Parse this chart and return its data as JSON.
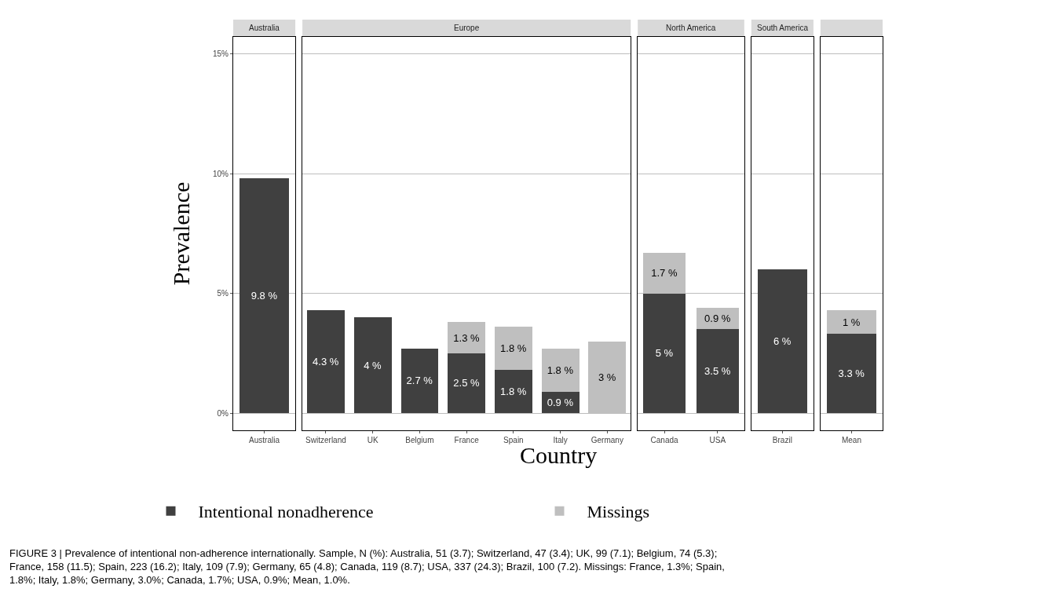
{
  "chart_data": [
    {
      "type": "bar",
      "title": "Australia",
      "stacked": true,
      "categories": [
        "Australia"
      ],
      "ylabel": "Prevalence",
      "legend": "bottom",
      "grid": "y",
      "ylim": [
        -0.72,
        15.72
      ],
      "yticks": [
        {
          "value": 0,
          "label": "0%"
        },
        {
          "value": 5,
          "label": "5%"
        },
        {
          "value": 10,
          "label": "10%"
        },
        {
          "value": 15,
          "label": "15%"
        }
      ],
      "series": [
        {
          "name": "Intentional nonadherence",
          "color": "#404040",
          "values": [
            9.8
          ],
          "value_labels": [
            "9.8 %"
          ]
        },
        {
          "name": "Missings",
          "color": "#bfbfbf",
          "values": [
            0
          ],
          "value_labels": [
            null
          ]
        }
      ],
      "annotations": [
        "FIGURE 3 | Prevalence of intentional non-adherence internationally. Sample, N (%): Australia, 51 (3.7); Switzerland, 47 (3.4); UK, 99 (7.1); Belgium, 74 (5.3); France, 158 (11.5); Spain, 223 (16.2); Italy, 109 (7.9); Germany, 65 (4.8); Canada, 119 (8.7); USA, 337 (24.3); Brazil, 100 (7.2). Missings: France, 1.3%; Spain, 1.8%; Italy, 1.8%; Germany, 3.0%; Canada, 1.7%; USA, 0.9%; Mean, 1.0%."
      ]
    },
    {
      "type": "bar",
      "title": "Europe",
      "stacked": true,
      "categories": [
        "Switzerland",
        "UK",
        "Belgium",
        "France",
        "Spain",
        "Italy",
        "Germany"
      ],
      "xlabel": "Country",
      "grid": "y",
      "tick_labels": "x",
      "ylim": [
        -0.72,
        15.72
      ],
      "yticks": [
        {
          "value": 0,
          "label": null
        },
        {
          "value": 5,
          "label": null
        },
        {
          "value": 10,
          "label": null
        },
        {
          "value": 15,
          "label": null
        }
      ],
      "series": [
        {
          "color": "#404040",
          "values": [
            4.3,
            4,
            2.7,
            2.5,
            1.8,
            0.9,
            0
          ],
          "value_labels": [
            "4.3 %",
            "4 %",
            "2.7 %",
            "2.5 %",
            "1.8 %",
            "0.9 %",
            null
          ]
        },
        {
          "color": "#bfbfbf",
          "values": [
            0,
            0,
            0,
            1.3,
            1.8,
            1.8,
            3
          ],
          "value_labels": [
            null,
            null,
            null,
            "1.3 %",
            "1.8 %",
            "1.8 %",
            "3 %"
          ]
        }
      ]
    },
    {
      "type": "bar",
      "title": "North America",
      "stacked": true,
      "categories": [
        "Canada",
        "USA"
      ],
      "grid": "y",
      "tick_labels": "x",
      "ylim": [
        -0.72,
        15.72
      ],
      "yticks": [
        {
          "value": 0,
          "label": null
        },
        {
          "value": 5,
          "label": null
        },
        {
          "value": 10,
          "label": null
        },
        {
          "value": 15,
          "label": null
        }
      ],
      "series": [
        {
          "color": "#404040",
          "values": [
            5,
            3.5
          ],
          "value_labels": [
            "5 %",
            "3.5 %"
          ]
        },
        {
          "color": "#bfbfbf",
          "values": [
            1.7,
            0.9
          ],
          "value_labels": [
            "1.7 %",
            "0.9 %"
          ]
        }
      ]
    },
    {
      "type": "bar",
      "title": "South America",
      "stacked": true,
      "categories": [
        "Brazil"
      ],
      "grid": "y",
      "tick_labels": "x",
      "ylim": [
        -0.72,
        15.72
      ],
      "yticks": [
        {
          "value": 0,
          "label": null
        },
        {
          "value": 5,
          "label": null
        },
        {
          "value": 10,
          "label": null
        },
        {
          "value": 15,
          "label": null
        }
      ],
      "series": [
        {
          "color": "#404040",
          "values": [
            6
          ],
          "value_labels": [
            "6 %"
          ]
        },
        {
          "color": "#bfbfbf",
          "values": [
            0
          ],
          "value_labels": [
            null
          ]
        }
      ]
    },
    {
      "type": "bar",
      "stacked": true,
      "categories": [
        "Mean"
      ],
      "grid": "y",
      "tick_labels": "x",
      "ylim": [
        -0.72,
        15.72
      ],
      "yticks": [
        {
          "value": 0,
          "label": null
        },
        {
          "value": 5,
          "label": null
        },
        {
          "value": 10,
          "label": null
        },
        {
          "value": 15,
          "label": null
        }
      ],
      "series": [
        {
          "color": "#404040",
          "values": [
            3.3
          ],
          "value_labels": [
            "3.3 %"
          ]
        },
        {
          "color": "#bfbfbf",
          "values": [
            1
          ],
          "value_labels": [
            "1 %"
          ]
        }
      ]
    }
  ]
}
